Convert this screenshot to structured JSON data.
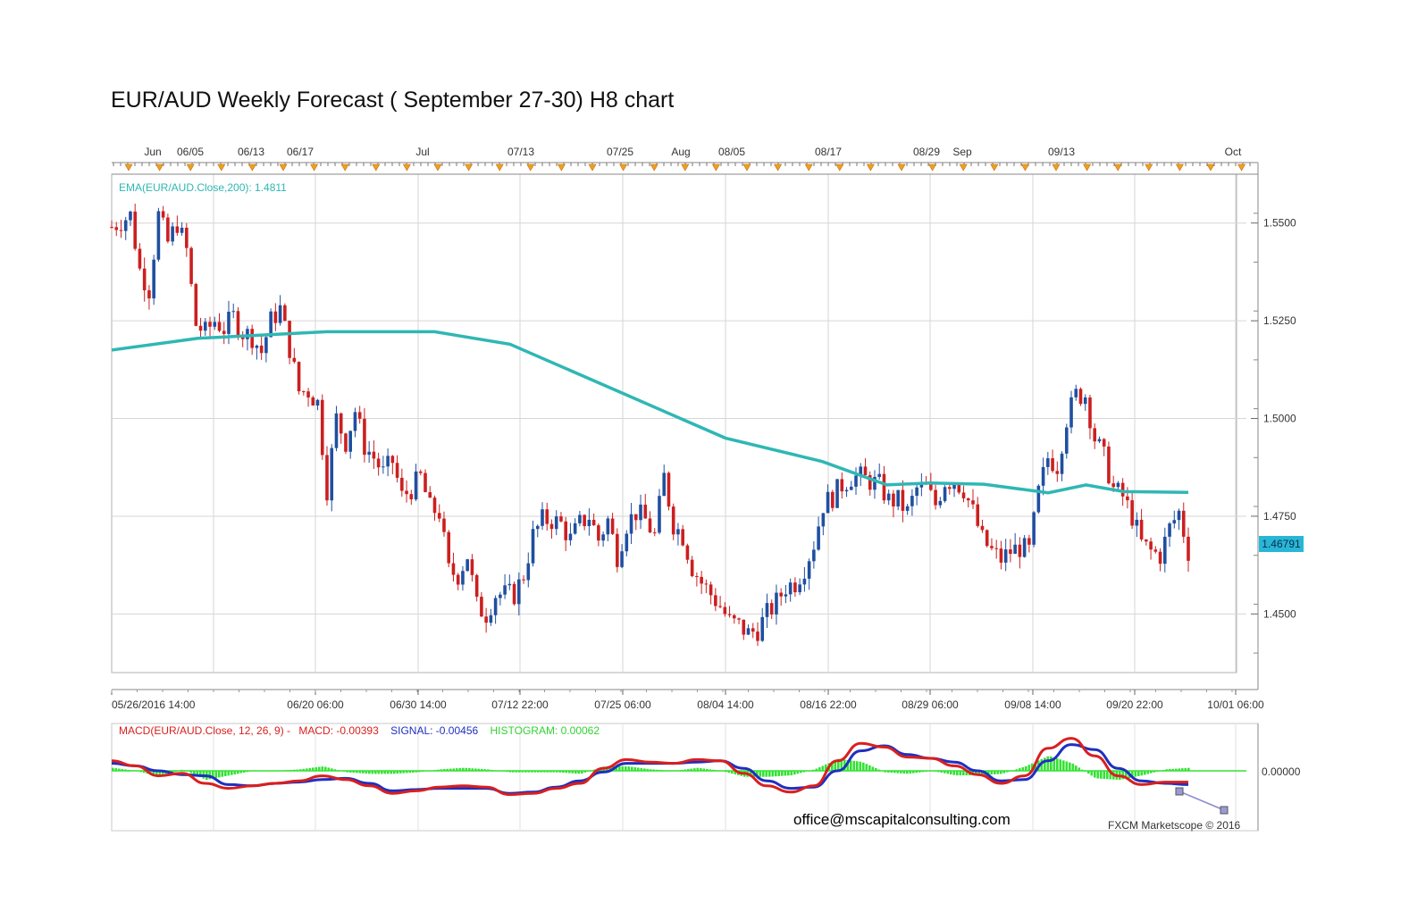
{
  "page": {
    "title": "EUR/AUD Weekly Forecast ( September 27-30) H8 chart"
  },
  "chart_data": {
    "type": "candlestick",
    "ylim": [
      1.435,
      1.5625
    ],
    "y_ticks": [
      "1.5500",
      "1.5250",
      "1.5000",
      "1.4750",
      "1.4500"
    ],
    "y_tick_values": [
      1.55,
      1.525,
      1.5,
      1.475,
      1.45
    ],
    "last_price_label": "1.46791",
    "last_price": 1.46791,
    "top_axis_labels": [
      "Jun",
      "06/05",
      "06/13",
      "06/17",
      "Jul",
      "07/13",
      "07/25",
      "Aug",
      "08/05",
      "08/17",
      "08/29",
      "Sep",
      "09/13",
      "Oct"
    ],
    "bottom_axis_labels": [
      "05/26/2016 14:00",
      "06/20 06:00",
      "06/30 14:00",
      "07/12 22:00",
      "07/25 06:00",
      "08/04 14:00",
      "08/16 22:00",
      "08/29 06:00",
      "09/08 14:00",
      "09/20 22:00",
      "10/01 06:00"
    ],
    "ema_label": "EMA(EUR/AUD.Close,200): 1.4811",
    "ema_value": 1.4811,
    "price_path": [
      [
        0,
        1.549
      ],
      [
        4,
        1.552
      ],
      [
        6,
        1.538
      ],
      [
        8,
        1.533
      ],
      [
        10,
        1.552
      ],
      [
        12,
        1.545
      ],
      [
        14,
        1.55
      ],
      [
        16,
        1.543
      ],
      [
        18,
        1.524
      ],
      [
        20,
        1.522
      ],
      [
        22,
        1.525
      ],
      [
        24,
        1.523
      ],
      [
        26,
        1.526
      ],
      [
        28,
        1.522
      ],
      [
        30,
        1.521
      ],
      [
        32,
        1.517
      ],
      [
        34,
        1.525
      ],
      [
        36,
        1.528
      ],
      [
        38,
        1.518
      ],
      [
        40,
        1.507
      ],
      [
        42,
        1.507
      ],
      [
        44,
        1.504
      ],
      [
        46,
        1.482
      ],
      [
        48,
        1.5
      ],
      [
        50,
        1.494
      ],
      [
        52,
        1.502
      ],
      [
        54,
        1.493
      ],
      [
        56,
        1.49
      ],
      [
        58,
        1.486
      ],
      [
        60,
        1.489
      ],
      [
        62,
        1.48
      ],
      [
        64,
        1.482
      ],
      [
        66,
        1.485
      ],
      [
        68,
        1.477
      ],
      [
        70,
        1.476
      ],
      [
        72,
        1.461
      ],
      [
        74,
        1.46
      ],
      [
        76,
        1.465
      ],
      [
        78,
        1.452
      ],
      [
        80,
        1.45
      ],
      [
        82,
        1.455
      ],
      [
        84,
        1.455
      ],
      [
        86,
        1.455
      ],
      [
        88,
        1.46
      ],
      [
        90,
        1.47
      ],
      [
        92,
        1.474
      ],
      [
        94,
        1.474
      ],
      [
        96,
        1.473
      ],
      [
        98,
        1.469
      ],
      [
        100,
        1.473
      ],
      [
        102,
        1.475
      ],
      [
        104,
        1.469
      ],
      [
        106,
        1.474
      ],
      [
        108,
        1.465
      ],
      [
        110,
        1.473
      ],
      [
        112,
        1.476
      ],
      [
        114,
        1.474
      ],
      [
        116,
        1.47
      ],
      [
        118,
        1.485
      ],
      [
        120,
        1.473
      ],
      [
        122,
        1.47
      ],
      [
        124,
        1.462
      ],
      [
        126,
        1.458
      ],
      [
        128,
        1.455
      ],
      [
        130,
        1.452
      ],
      [
        132,
        1.448
      ],
      [
        134,
        1.447
      ],
      [
        136,
        1.445
      ],
      [
        138,
        1.446
      ],
      [
        140,
        1.45
      ],
      [
        142,
        1.453
      ],
      [
        144,
        1.457
      ],
      [
        146,
        1.458
      ],
      [
        148,
        1.462
      ],
      [
        150,
        1.468
      ],
      [
        152,
        1.478
      ],
      [
        154,
        1.48
      ],
      [
        156,
        1.483
      ],
      [
        158,
        1.485
      ],
      [
        160,
        1.485
      ],
      [
        162,
        1.484
      ],
      [
        164,
        1.483
      ],
      [
        166,
        1.479
      ],
      [
        168,
        1.479
      ],
      [
        170,
        1.476
      ],
      [
        172,
        1.482
      ],
      [
        174,
        1.482
      ],
      [
        176,
        1.478
      ],
      [
        178,
        1.484
      ],
      [
        180,
        1.484
      ],
      [
        182,
        1.482
      ],
      [
        184,
        1.476
      ],
      [
        186,
        1.469
      ],
      [
        188,
        1.466
      ],
      [
        190,
        1.464
      ],
      [
        192,
        1.466
      ],
      [
        194,
        1.467
      ],
      [
        196,
        1.466
      ],
      [
        198,
        1.481
      ],
      [
        200,
        1.49
      ],
      [
        202,
        1.488
      ],
      [
        204,
        1.5
      ],
      [
        206,
        1.506
      ],
      [
        208,
        1.506
      ],
      [
        210,
        1.495
      ],
      [
        212,
        1.49
      ],
      [
        214,
        1.482
      ],
      [
        216,
        1.48
      ],
      [
        218,
        1.475
      ],
      [
        220,
        1.468
      ],
      [
        222,
        1.466
      ],
      [
        224,
        1.465
      ],
      [
        226,
        1.472
      ],
      [
        228,
        1.476
      ],
      [
        230,
        1.466
      ]
    ],
    "price_path_total": 230,
    "ema_path": [
      [
        0,
        1.5175
      ],
      [
        0.08,
        1.5205
      ],
      [
        0.2,
        1.5222
      ],
      [
        0.3,
        1.5222
      ],
      [
        0.37,
        1.519
      ],
      [
        0.47,
        1.507
      ],
      [
        0.57,
        1.495
      ],
      [
        0.66,
        1.489
      ],
      [
        0.72,
        1.483
      ],
      [
        0.76,
        1.4835
      ],
      [
        0.81,
        1.4832
      ],
      [
        0.87,
        1.481
      ],
      [
        0.905,
        1.483
      ],
      [
        0.94,
        1.4813
      ],
      [
        1.0,
        1.4811
      ]
    ],
    "macd_label": "MACD(EUR/AUD.Close, 12, 26, 9) -",
    "macd_value_label": "MACD: -0.00393",
    "signal_label": "SIGNAL: -0.00456",
    "histogram_label": "HISTOGRAM: 0.00062",
    "macd_zero_label": "0.00000",
    "macd_series": [
      0.4,
      0.2,
      -0.2,
      -0.1,
      -0.5,
      -0.7,
      -0.6,
      -0.5,
      -0.4,
      -0.2,
      -0.35,
      -0.6,
      -0.9,
      -0.8,
      -0.65,
      -0.6,
      -0.65,
      -0.95,
      -0.9,
      -0.7,
      -0.5,
      0.1,
      0.45,
      0.35,
      0.3,
      0.45,
      0.4,
      -0.1,
      -0.6,
      -0.85,
      -0.6,
      0.4,
      1.1,
      0.95,
      0.55,
      0.5,
      0.2,
      -0.15,
      -0.5,
      -0.2,
      0.9,
      1.3,
      0.6,
      -0.2,
      -0.55,
      -0.45,
      -0.45
    ],
    "signal_series": [
      0.3,
      0.2,
      0.0,
      -0.15,
      -0.2,
      -0.55,
      -0.6,
      -0.5,
      -0.45,
      -0.35,
      -0.3,
      -0.5,
      -0.8,
      -0.75,
      -0.7,
      -0.7,
      -0.7,
      -0.9,
      -0.85,
      -0.65,
      -0.4,
      -0.05,
      0.3,
      0.3,
      0.3,
      0.35,
      0.4,
      0.1,
      -0.4,
      -0.7,
      -0.65,
      0.0,
      0.8,
      1.0,
      0.65,
      0.5,
      0.35,
      0.0,
      -0.4,
      -0.35,
      0.4,
      1.05,
      0.85,
      0.1,
      -0.4,
      -0.5,
      -0.55
    ],
    "colors": {
      "bull": "#1f4fa0",
      "bear": "#cc1f1f",
      "ema": "#2fb7b4",
      "macd": "#d91f1f",
      "signal": "#1f2fbf",
      "hist": "#33e233",
      "grid": "#d6d6d6",
      "price_tag_bg": "#29b6d6"
    }
  },
  "footer": {
    "email": "office@mscapitalconsulting.com",
    "credit": "FXCM Marketscope © 2016"
  }
}
